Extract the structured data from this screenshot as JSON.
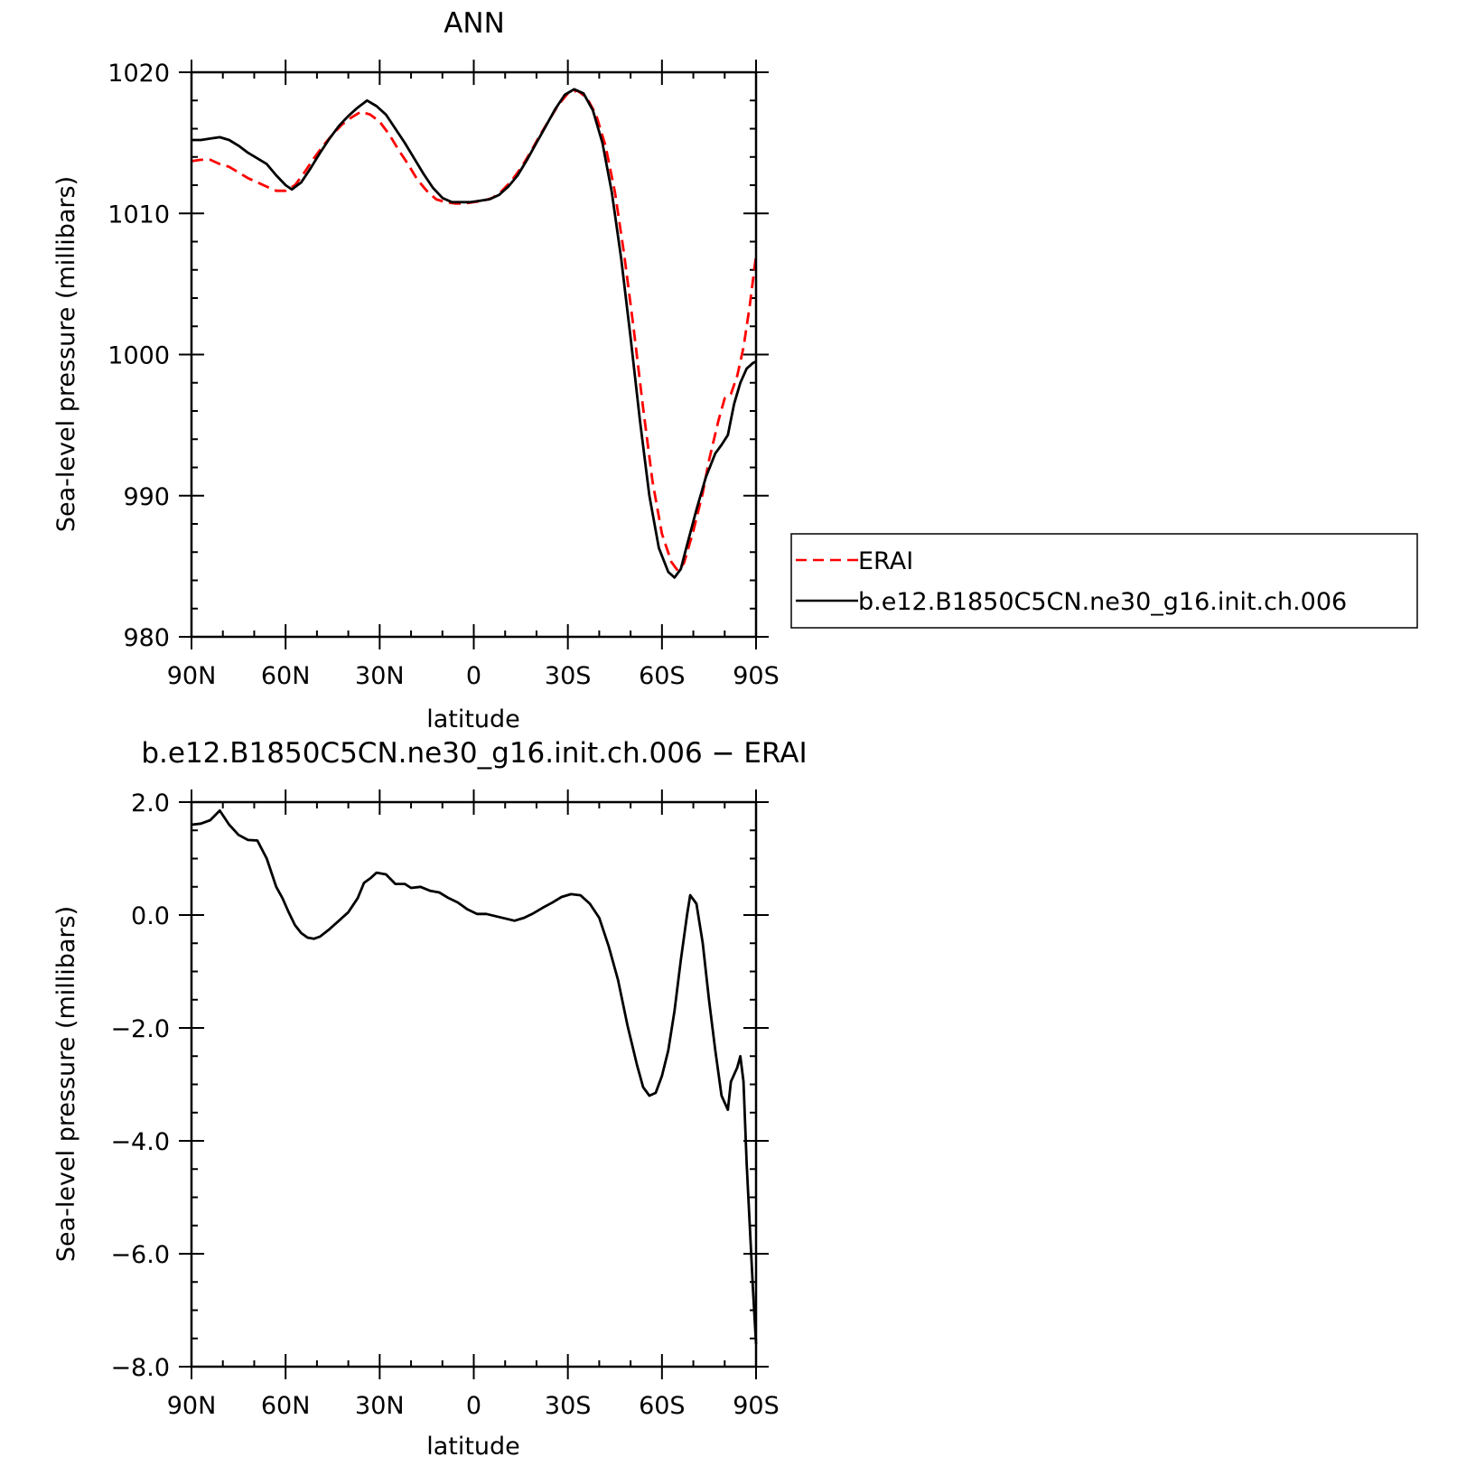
{
  "chart_data": [
    {
      "type": "line",
      "title": "ANN",
      "xlabel": "latitude",
      "ylabel": "Sea-level pressure (millibars)",
      "xlim": [
        90,
        -90
      ],
      "ylim": [
        980,
        1020
      ],
      "x_tick_values": [
        90,
        60,
        30,
        0,
        -30,
        -60,
        -90
      ],
      "x_tick_labels": [
        "90N",
        "60N",
        "30N",
        "0",
        "30S",
        "60S",
        "90S"
      ],
      "y_tick_values": [
        980,
        990,
        1000,
        1010,
        1020
      ],
      "y_tick_labels": [
        "980",
        "990",
        "1000",
        "1010",
        "1020"
      ],
      "grid": false,
      "legend_position": "right, outside plot",
      "series": [
        {
          "name": "ERAI",
          "color": "#ff0000",
          "dash": true,
          "points": [
            [
              90,
              1013.7
            ],
            [
              87,
              1013.8
            ],
            [
              84,
              1013.8
            ],
            [
              81,
              1013.5
            ],
            [
              78,
              1013.3
            ],
            [
              75,
              1012.9
            ],
            [
              72,
              1012.5
            ],
            [
              69,
              1012.2
            ],
            [
              66,
              1011.9
            ],
            [
              63,
              1011.6
            ],
            [
              60,
              1011.6
            ],
            [
              57,
              1012.0
            ],
            [
              54,
              1012.9
            ],
            [
              51,
              1013.9
            ],
            [
              48,
              1014.8
            ],
            [
              45,
              1015.6
            ],
            [
              42,
              1016.3
            ],
            [
              39,
              1016.8
            ],
            [
              36,
              1017.2
            ],
            [
              33,
              1017.0
            ],
            [
              30,
              1016.5
            ],
            [
              27,
              1015.6
            ],
            [
              24,
              1014.5
            ],
            [
              21,
              1013.5
            ],
            [
              18,
              1012.4
            ],
            [
              15,
              1011.6
            ],
            [
              12,
              1011.0
            ],
            [
              9,
              1010.8
            ],
            [
              6,
              1010.7
            ],
            [
              3,
              1010.7
            ],
            [
              0,
              1010.8
            ],
            [
              -3,
              1010.9
            ],
            [
              -6,
              1011.1
            ],
            [
              -9,
              1011.6
            ],
            [
              -12,
              1012.3
            ],
            [
              -15,
              1013.2
            ],
            [
              -18,
              1014.3
            ],
            [
              -21,
              1015.5
            ],
            [
              -24,
              1016.6
            ],
            [
              -27,
              1017.7
            ],
            [
              -30,
              1018.5
            ],
            [
              -33,
              1018.7
            ],
            [
              -36,
              1018.2
            ],
            [
              -39,
              1017.0
            ],
            [
              -42,
              1014.8
            ],
            [
              -45,
              1011.5
            ],
            [
              -48,
              1007.0
            ],
            [
              -51,
              1001.8
            ],
            [
              -54,
              996.2
            ],
            [
              -57,
              991.0
            ],
            [
              -60,
              987.3
            ],
            [
              -63,
              985.3
            ],
            [
              -65,
              984.7
            ],
            [
              -67,
              985.2
            ],
            [
              -70,
              987.5
            ],
            [
              -73,
              990.2
            ],
            [
              -75,
              992.5
            ],
            [
              -78,
              995.3
            ],
            [
              -80,
              996.9
            ],
            [
              -82,
              997.2
            ],
            [
              -84,
              998.5
            ],
            [
              -86,
              1000.5
            ],
            [
              -88,
              1003.5
            ],
            [
              -90,
              1007.0
            ]
          ]
        },
        {
          "name": "b.e12.B1850C5CN.ne30_g16.init.ch.006",
          "color": "#000000",
          "dash": false,
          "points": [
            [
              90,
              1015.2
            ],
            [
              87,
              1015.2
            ],
            [
              84,
              1015.3
            ],
            [
              81,
              1015.4
            ],
            [
              78,
              1015.2
            ],
            [
              75,
              1014.8
            ],
            [
              72,
              1014.3
            ],
            [
              69,
              1013.9
            ],
            [
              66,
              1013.5
            ],
            [
              63,
              1012.7
            ],
            [
              60,
              1012.0
            ],
            [
              58,
              1011.7
            ],
            [
              55,
              1012.2
            ],
            [
              52,
              1013.2
            ],
            [
              49,
              1014.3
            ],
            [
              46,
              1015.3
            ],
            [
              43,
              1016.2
            ],
            [
              40,
              1016.9
            ],
            [
              37,
              1017.5
            ],
            [
              34,
              1018.0
            ],
            [
              31,
              1017.6
            ],
            [
              28,
              1017.0
            ],
            [
              25,
              1016.0
            ],
            [
              22,
              1015.0
            ],
            [
              19,
              1013.9
            ],
            [
              16,
              1012.8
            ],
            [
              13,
              1011.8
            ],
            [
              10,
              1011.1
            ],
            [
              7,
              1010.8
            ],
            [
              4,
              1010.8
            ],
            [
              1,
              1010.8
            ],
            [
              -2,
              1010.9
            ],
            [
              -5,
              1011.0
            ],
            [
              -8,
              1011.3
            ],
            [
              -11,
              1011.9
            ],
            [
              -14,
              1012.7
            ],
            [
              -17,
              1013.8
            ],
            [
              -20,
              1015.0
            ],
            [
              -23,
              1016.2
            ],
            [
              -26,
              1017.4
            ],
            [
              -29,
              1018.4
            ],
            [
              -32,
              1018.8
            ],
            [
              -35,
              1018.5
            ],
            [
              -38,
              1017.3
            ],
            [
              -41,
              1015.0
            ],
            [
              -44,
              1011.5
            ],
            [
              -47,
              1006.8
            ],
            [
              -50,
              1001.2
            ],
            [
              -53,
              995.3
            ],
            [
              -56,
              990.0
            ],
            [
              -59,
              986.3
            ],
            [
              -62,
              984.6
            ],
            [
              -64,
              984.2
            ],
            [
              -66,
              984.8
            ],
            [
              -68,
              986.5
            ],
            [
              -71,
              989.0
            ],
            [
              -74,
              991.3
            ],
            [
              -77,
              993.0
            ],
            [
              -79,
              993.6
            ],
            [
              -81,
              994.3
            ],
            [
              -83,
              996.5
            ],
            [
              -85,
              998.0
            ],
            [
              -87,
              999.0
            ],
            [
              -89,
              999.4
            ],
            [
              -90,
              999.5
            ]
          ]
        }
      ]
    },
    {
      "type": "line",
      "title": "b.e12.B1850C5CN.ne30_g16.init.ch.006 − ERAI",
      "xlabel": "latitude",
      "ylabel": "Sea-level pressure (millibars)",
      "xlim": [
        90,
        -90
      ],
      "ylim": [
        -8,
        2
      ],
      "x_tick_values": [
        90,
        60,
        30,
        0,
        -30,
        -60,
        -90
      ],
      "x_tick_labels": [
        "90N",
        "60N",
        "30N",
        "0",
        "30S",
        "60S",
        "90S"
      ],
      "y_tick_values": [
        -8,
        -6,
        -4,
        -2,
        0,
        2
      ],
      "y_tick_labels": [
        "−8.0",
        "−6.0",
        "−4.0",
        "−2.0",
        "0.0",
        "2.0"
      ],
      "grid": false,
      "series": [
        {
          "color": "#000000",
          "dash": false,
          "points": [
            [
              90,
              1.6
            ],
            [
              87,
              1.62
            ],
            [
              84,
              1.68
            ],
            [
              81,
              1.85
            ],
            [
              78,
              1.6
            ],
            [
              75,
              1.42
            ],
            [
              72,
              1.33
            ],
            [
              69,
              1.32
            ],
            [
              66,
              1.0
            ],
            [
              63,
              0.5
            ],
            [
              61,
              0.3
            ],
            [
              59,
              0.05
            ],
            [
              57,
              -0.18
            ],
            [
              55,
              -0.32
            ],
            [
              53,
              -0.4
            ],
            [
              51,
              -0.42
            ],
            [
              49,
              -0.38
            ],
            [
              46,
              -0.25
            ],
            [
              43,
              -0.1
            ],
            [
              40,
              0.05
            ],
            [
              37,
              0.3
            ],
            [
              35,
              0.57
            ],
            [
              33,
              0.65
            ],
            [
              31,
              0.75
            ],
            [
              28,
              0.72
            ],
            [
              25,
              0.55
            ],
            [
              22,
              0.55
            ],
            [
              20,
              0.48
            ],
            [
              17,
              0.5
            ],
            [
              14,
              0.43
            ],
            [
              11,
              0.4
            ],
            [
              8,
              0.3
            ],
            [
              5,
              0.22
            ],
            [
              2,
              0.1
            ],
            [
              -1,
              0.02
            ],
            [
              -4,
              0.02
            ],
            [
              -7,
              -0.02
            ],
            [
              -10,
              -0.06
            ],
            [
              -13,
              -0.1
            ],
            [
              -16,
              -0.05
            ],
            [
              -19,
              0.03
            ],
            [
              -22,
              0.13
            ],
            [
              -25,
              0.22
            ],
            [
              -28,
              0.32
            ],
            [
              -31,
              0.37
            ],
            [
              -34,
              0.35
            ],
            [
              -37,
              0.2
            ],
            [
              -40,
              -0.05
            ],
            [
              -43,
              -0.55
            ],
            [
              -46,
              -1.15
            ],
            [
              -49,
              -1.95
            ],
            [
              -52,
              -2.65
            ],
            [
              -54,
              -3.05
            ],
            [
              -56,
              -3.2
            ],
            [
              -58,
              -3.15
            ],
            [
              -60,
              -2.85
            ],
            [
              -62,
              -2.4
            ],
            [
              -64,
              -1.7
            ],
            [
              -66,
              -0.8
            ],
            [
              -68,
              0.0
            ],
            [
              -69,
              0.35
            ],
            [
              -71,
              0.2
            ],
            [
              -73,
              -0.5
            ],
            [
              -75,
              -1.5
            ],
            [
              -77,
              -2.4
            ],
            [
              -79,
              -3.2
            ],
            [
              -81,
              -3.45
            ],
            [
              -82,
              -2.95
            ],
            [
              -84,
              -2.7
            ],
            [
              -85,
              -2.5
            ],
            [
              -86,
              -2.95
            ],
            [
              -87,
              -4.4
            ],
            [
              -89,
              -6.6
            ],
            [
              -90,
              -7.6
            ]
          ]
        }
      ]
    }
  ]
}
